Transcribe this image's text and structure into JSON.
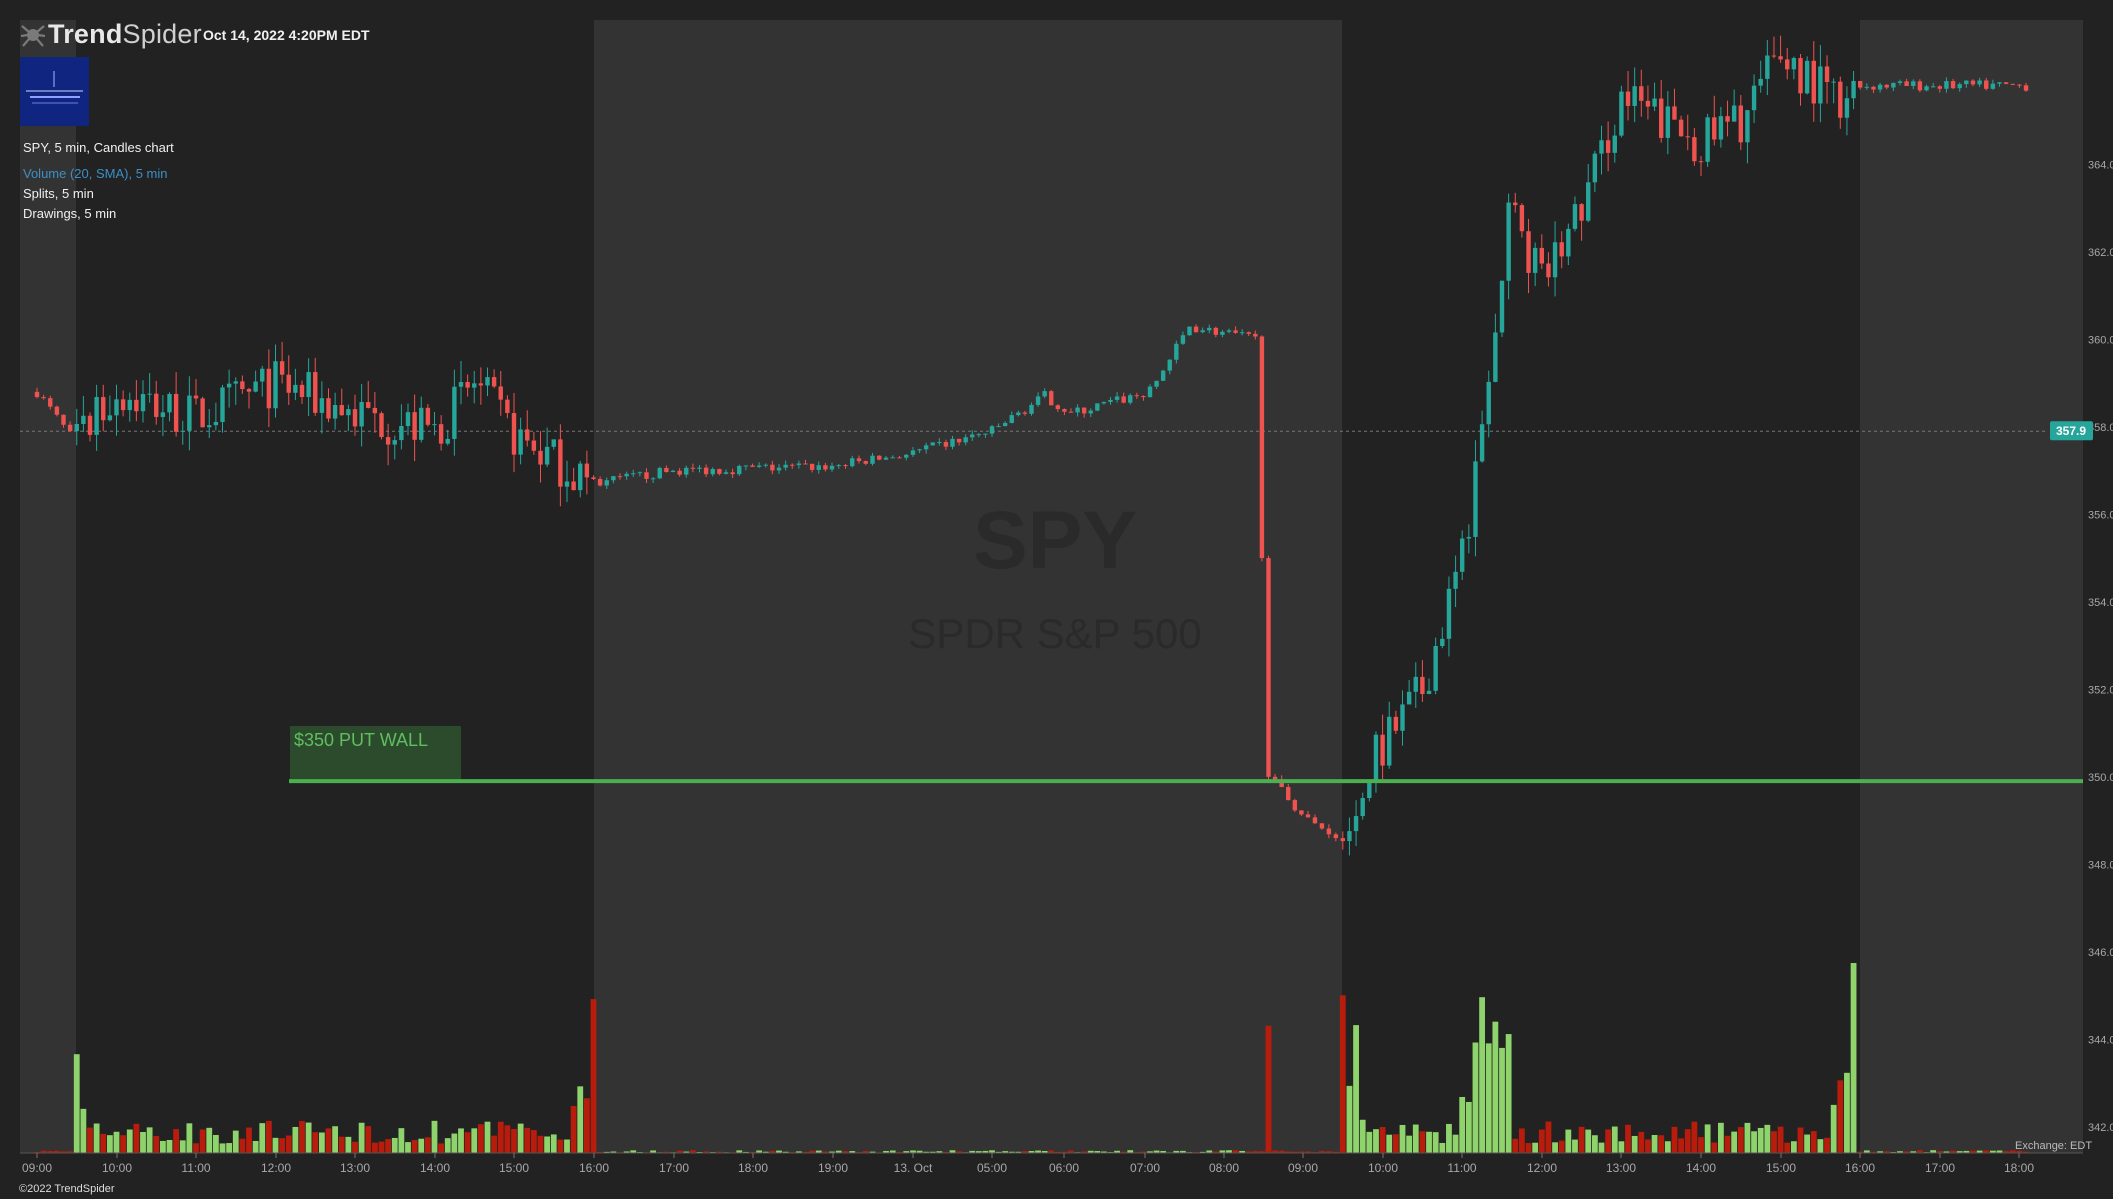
{
  "header": {
    "brand_bold": "Trend",
    "brand_thin": "Spider",
    "datetime": "Oct 14, 2022 4:20PM EDT",
    "logo_icon": "trendspider-spider-icon"
  },
  "legend": {
    "main": "SPY, 5 min, Candles chart",
    "volume": "Volume (20, SMA), 5 min",
    "splits": "Splits, 5 min",
    "drawings": "Drawings, 5 min"
  },
  "watermark": {
    "ticker": "SPY",
    "name": "SPDR S&P 500"
  },
  "annotation": {
    "label": "$350 PUT WALL",
    "level": 349.9
  },
  "current_price_label": "357.9",
  "exchange": "Exchange: EDT",
  "copyright": "©2022 TrendSpider",
  "colors": {
    "bull": "#26a69a",
    "bear": "#ef5350",
    "volume_bull": "#8ed36b",
    "volume_bear": "#b71c0c",
    "put_wall": "#4caf50",
    "extended_session_shade": "#333333",
    "price_badge": "#26a69a"
  },
  "chart_data": {
    "type": "candlestick",
    "symbol": "SPY",
    "interval": "5 min",
    "ylim": [
      341.4,
      367.3
    ],
    "y_ticks": [
      "342.00",
      "344.00",
      "346.00",
      "348.00",
      "350.00",
      "352.00",
      "354.00",
      "356.00",
      "358.00",
      "360.00",
      "362.00",
      "364.00"
    ],
    "x_ticks": [
      "09:00",
      "10:00",
      "11:00",
      "12:00",
      "13:00",
      "14:00",
      "15:00",
      "16:00",
      "17:00",
      "18:00",
      "19:00",
      "13. Oct",
      "05:00",
      "06:00",
      "07:00",
      "08:00",
      "09:00",
      "10:00",
      "11:00",
      "12:00",
      "13:00",
      "14:00",
      "15:00",
      "16:00",
      "17:00",
      "18:00"
    ],
    "current_price": 357.9,
    "horizontal_line": {
      "label": "$350 PUT WALL",
      "y": 349.9
    },
    "shaded_sessions": [
      {
        "from": "09:00",
        "to": "09:30"
      },
      {
        "from": "16:00",
        "to": "09:30 (13. Oct)"
      },
      {
        "from": "16:00 (13. Oct)",
        "to": "18:00"
      }
    ],
    "price_path": [
      {
        "t": "Oct 12 09:00",
        "close": 358.8
      },
      {
        "t": "Oct 12 09:30",
        "close": 357.6
      },
      {
        "t": "Oct 12 10:00",
        "close": 358.8
      },
      {
        "t": "Oct 12 11:00",
        "close": 358.2
      },
      {
        "t": "Oct 12 12:00",
        "close": 359.0
      },
      {
        "t": "Oct 12 13:00",
        "close": 358.3
      },
      {
        "t": "Oct 12 14:00",
        "close": 357.9
      },
      {
        "t": "Oct 12 14:30",
        "close": 359.0
      },
      {
        "t": "Oct 12 15:00",
        "close": 357.8
      },
      {
        "t": "Oct 12 16:00",
        "close": 356.7
      },
      {
        "t": "Oct 12 17:00",
        "close": 357.0
      },
      {
        "t": "Oct 12 19:00",
        "close": 357.1
      },
      {
        "t": "13. Oct 04:00",
        "close": 357.4
      },
      {
        "t": "13. Oct 05:00",
        "close": 357.9
      },
      {
        "t": "13. Oct 05:40",
        "close": 358.7
      },
      {
        "t": "13. Oct 06:00",
        "close": 358.3
      },
      {
        "t": "13. Oct 07:00",
        "close": 358.8
      },
      {
        "t": "13. Oct 07:30",
        "close": 360.3
      },
      {
        "t": "13. Oct 08:20",
        "close": 360.0
      },
      {
        "t": "13. Oct 08:30",
        "close": 350.0
      },
      {
        "t": "13. Oct 09:00",
        "close": 349.0
      },
      {
        "t": "13. Oct 09:30",
        "close": 348.6
      },
      {
        "t": "13. Oct 09:45",
        "close": 350.0
      },
      {
        "t": "13. Oct 10:30",
        "close": 352.0
      },
      {
        "t": "13. Oct 11:00",
        "close": 355.0
      },
      {
        "t": "13. Oct 11:20",
        "close": 359.0
      },
      {
        "t": "13. Oct 11:35",
        "close": 363.0
      },
      {
        "t": "13. Oct 12:00",
        "close": 361.3
      },
      {
        "t": "13. Oct 12:30",
        "close": 363.0
      },
      {
        "t": "13. Oct 13:00",
        "close": 365.5
      },
      {
        "t": "13. Oct 14:00",
        "close": 364.5
      },
      {
        "t": "13. Oct 14:30",
        "close": 365.0
      },
      {
        "t": "13. Oct 15:00",
        "close": 366.5
      },
      {
        "t": "13. Oct 15:40",
        "close": 365.5
      },
      {
        "t": "13. Oct 16:00",
        "close": 365.8
      },
      {
        "t": "13. Oct 18:10",
        "close": 365.8
      }
    ],
    "volume": {
      "note": "relative bar heights, regular sessions dominate",
      "spikes": [
        {
          "t": "Oct 12 09:30",
          "rel": 0.52
        },
        {
          "t": "Oct 12 16:00",
          "rel": 0.81
        },
        {
          "t": "13. Oct 08:30",
          "rel": 0.67
        },
        {
          "t": "13. Oct 09:30",
          "rel": 0.83
        },
        {
          "t": "13. Oct 11:15",
          "rel": 0.82
        },
        {
          "t": "13. Oct 15:55",
          "rel": 1.0
        }
      ]
    }
  }
}
